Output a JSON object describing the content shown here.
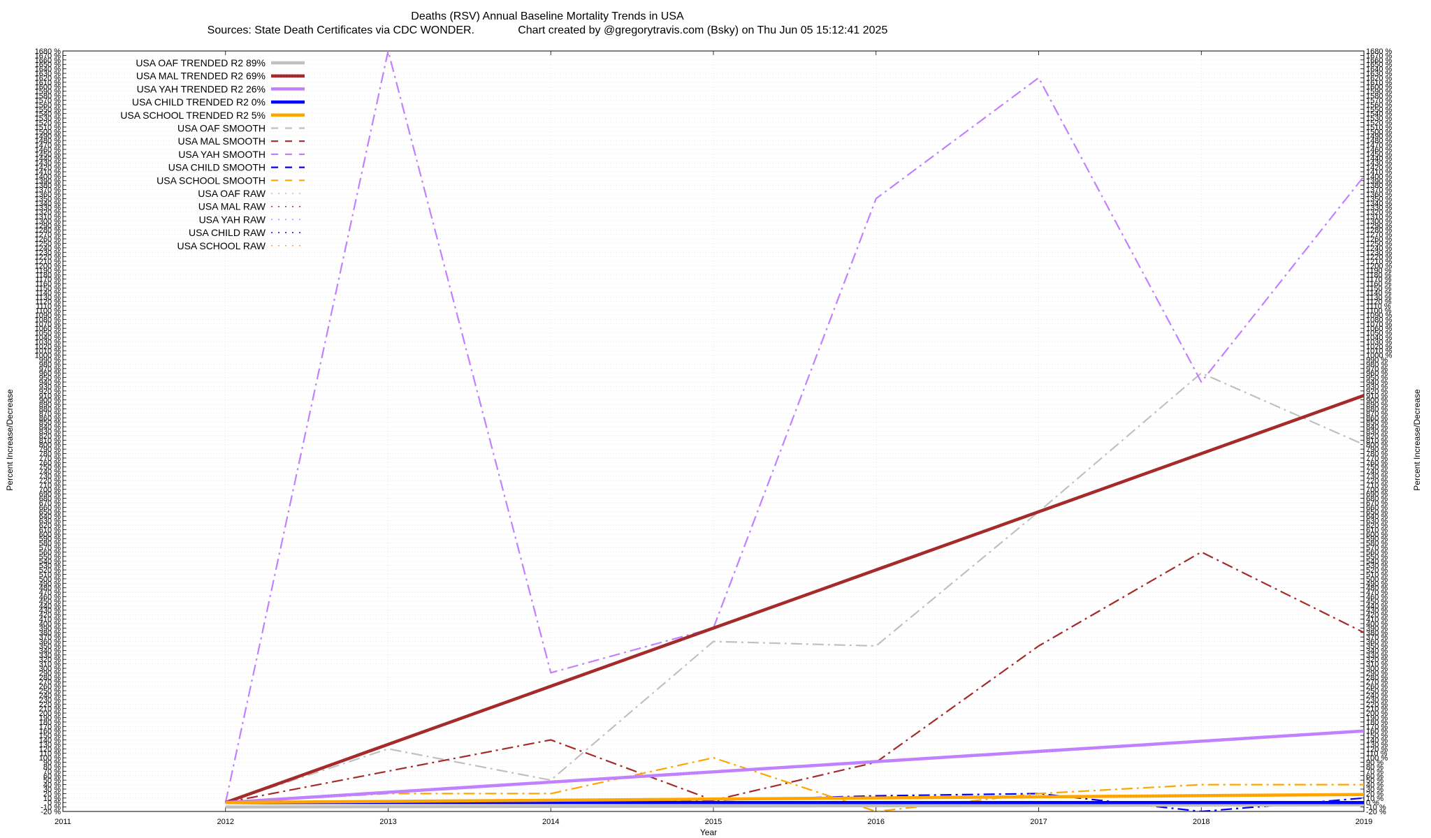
{
  "chart_data": {
    "type": "line",
    "title": "Deaths (RSV)  Annual Baseline Mortality Trends in USA",
    "subtitle": "Sources: State Death Certificates via CDC WONDER.              Chart created by @gregorytravis.com (Bsky) on Thu Jun 05 15:12:41 2025",
    "xlabel": "Year",
    "ylabel": "Percent Increase/Decrease",
    "y2label": "Percent Increase/Decrease",
    "xlim": [
      2011,
      2019
    ],
    "ylim": [
      -20,
      1680
    ],
    "x_ticks": [
      "2011",
      "2012",
      "2013",
      "2014",
      "2015",
      "2016",
      "2017",
      "2018",
      "2019"
    ],
    "y_tick_step": 10,
    "y_tick_suffix": " %",
    "grid": true,
    "legend_position": "top-left",
    "series": [
      {
        "name": "USA OAF TRENDED R2  89%",
        "style": "trend",
        "color": "#c0c0c0",
        "x": [
          2012,
          2019
        ],
        "y": [
          -10,
          -5
        ]
      },
      {
        "name": "USA MAL TRENDED R2  69%",
        "style": "trend",
        "color": "#a52a2a",
        "x": [
          2012,
          2019
        ],
        "y": [
          0,
          910
        ]
      },
      {
        "name": "USA YAH TRENDED R2  26%",
        "style": "trend",
        "color": "#c080ff",
        "x": [
          2012,
          2019
        ],
        "y": [
          0,
          160
        ]
      },
      {
        "name": "USA CHILD TRENDED R2   0%",
        "style": "trend",
        "color": "#0000ff",
        "x": [
          2012,
          2019
        ],
        "y": [
          0,
          0
        ]
      },
      {
        "name": "USA SCHOOL TRENDED R2   5%",
        "style": "trend",
        "color": "#ffa500",
        "x": [
          2012,
          2019
        ],
        "y": [
          0,
          18
        ]
      },
      {
        "name": "USA OAF SMOOTH",
        "style": "smooth",
        "color": "#c0c0c0",
        "x": [
          2012,
          2013,
          2014,
          2015,
          2016,
          2017,
          2018,
          2019
        ],
        "y": [
          0,
          120,
          50,
          360,
          350,
          650,
          960,
          800
        ]
      },
      {
        "name": "USA MAL SMOOTH",
        "style": "smooth",
        "color": "#a52a2a",
        "x": [
          2012,
          2013,
          2014,
          2015,
          2016,
          2017,
          2018,
          2019
        ],
        "y": [
          0,
          70,
          140,
          5,
          90,
          350,
          560,
          380
        ]
      },
      {
        "name": "USA YAH SMOOTH",
        "style": "smooth",
        "color": "#c080ff",
        "x": [
          2012,
          2013,
          2014,
          2015,
          2016,
          2017,
          2018,
          2019
        ],
        "y": [
          0,
          1680,
          290,
          390,
          1350,
          1620,
          940,
          1400
        ]
      },
      {
        "name": "USA CHILD SMOOTH",
        "style": "smooth",
        "color": "#0000ff",
        "x": [
          2012,
          2013,
          2014,
          2015,
          2016,
          2017,
          2018,
          2019
        ],
        "y": [
          0,
          0,
          0,
          5,
          15,
          20,
          -20,
          10
        ]
      },
      {
        "name": "USA SCHOOL SMOOTH",
        "style": "smooth",
        "color": "#ffa500",
        "x": [
          2012,
          2013,
          2014,
          2015,
          2016,
          2017,
          2018,
          2019
        ],
        "y": [
          0,
          20,
          20,
          100,
          -20,
          20,
          40,
          40
        ]
      },
      {
        "name": "USA OAF RAW",
        "style": "raw",
        "color": "#c0c0c0",
        "x": [],
        "y": []
      },
      {
        "name": "USA MAL RAW",
        "style": "raw",
        "color": "#a52a2a",
        "x": [],
        "y": []
      },
      {
        "name": "USA YAH RAW",
        "style": "raw",
        "color": "#c080ff",
        "x": [],
        "y": []
      },
      {
        "name": "USA CHILD RAW",
        "style": "raw",
        "color": "#0000ff",
        "x": [],
        "y": []
      },
      {
        "name": "USA SCHOOL RAW",
        "style": "raw",
        "color": "#ffa500",
        "x": [],
        "y": []
      }
    ]
  }
}
